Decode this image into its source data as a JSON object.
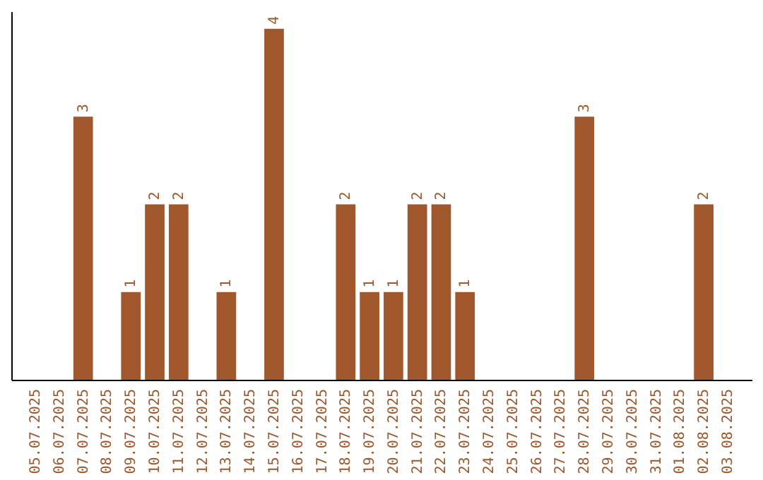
{
  "chart_data": {
    "type": "bar",
    "categories": [
      "05.07.2025",
      "06.07.2025",
      "07.07.2025",
      "08.07.2025",
      "09.07.2025",
      "10.07.2025",
      "11.07.2025",
      "12.07.2025",
      "13.07.2025",
      "14.07.2025",
      "15.07.2025",
      "16.07.2025",
      "17.07.2025",
      "18.07.2025",
      "19.07.2025",
      "20.07.2025",
      "21.07.2025",
      "22.07.2025",
      "23.07.2025",
      "24.07.2025",
      "25.07.2025",
      "26.07.2025",
      "27.07.2025",
      "28.07.2025",
      "29.07.2025",
      "30.07.2025",
      "31.07.2025",
      "01.08.2025",
      "02.08.2025",
      "03.08.2025"
    ],
    "values": [
      0,
      0,
      3,
      0,
      1,
      2,
      2,
      0,
      1,
      0,
      4,
      0,
      0,
      2,
      1,
      1,
      2,
      2,
      1,
      0,
      0,
      0,
      0,
      3,
      0,
      0,
      0,
      0,
      2,
      0
    ],
    "value_labels": [
      null,
      null,
      "3",
      null,
      "1",
      "2",
      "2",
      null,
      "1",
      null,
      "4",
      null,
      null,
      "2",
      "1",
      "1",
      "2",
      "2",
      "1",
      null,
      null,
      null,
      null,
      "3",
      null,
      null,
      null,
      null,
      "2",
      null
    ],
    "color": "#a0572b"
  }
}
